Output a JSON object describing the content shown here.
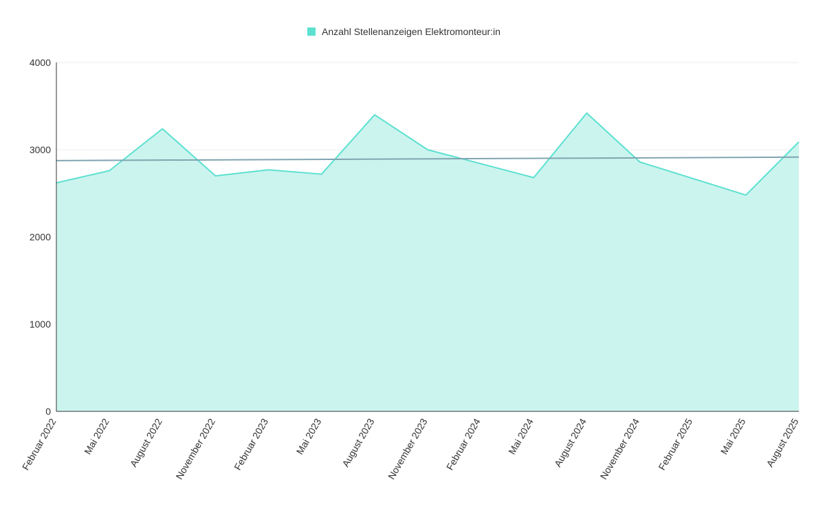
{
  "chart_data": {
    "type": "area",
    "title": "",
    "xlabel": "",
    "ylabel": "",
    "categories": [
      "Februar 2022",
      "Mai 2022",
      "August 2022",
      "November 2022",
      "Februar 2023",
      "Mai 2023",
      "August 2023",
      "November 2023",
      "Februar 2024",
      "Mai 2024",
      "August 2024",
      "November 2024",
      "Februar 2025",
      "Mai 2025",
      "August 2025"
    ],
    "series": [
      {
        "name": "Anzahl Stellenanzeigen Elektromonteur:in",
        "values": [
          2620,
          2760,
          3240,
          2700,
          2770,
          2720,
          3400,
          3000,
          2840,
          2680,
          3420,
          2860,
          2670,
          2480,
          3090
        ],
        "color": "#5ce0d0"
      }
    ],
    "trendline": {
      "start": 2875,
      "end": 2915,
      "color": "#7fa4b0"
    },
    "yticks": [
      0,
      1000,
      2000,
      3000,
      4000
    ],
    "ylim": [
      0,
      4000
    ],
    "grid": true,
    "legend": "top-center",
    "area_fill": "#cbf4ee"
  }
}
